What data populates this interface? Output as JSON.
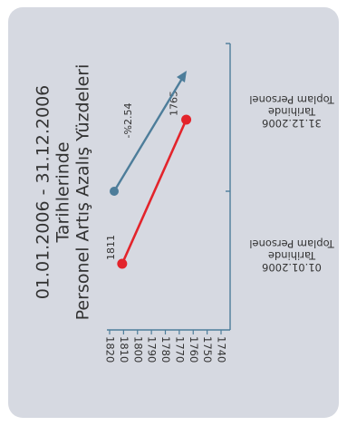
{
  "chart_data": {
    "type": "line",
    "title_lines": [
      "01.01.2006 - 31.12.2006",
      "Tarihlerinde",
      "Personel Artış Azalış Yüzdeleri"
    ],
    "categories": [
      {
        "lines": [
          "01.01.2006",
          "Tarihinde",
          "Toplam Personel"
        ]
      },
      {
        "lines": [
          "31.12.2006",
          "Tarihinde",
          "Toplam Personel"
        ]
      }
    ],
    "series": [
      {
        "values": [
          1811,
          1765
        ],
        "data_labels": [
          "1811",
          "1765"
        ],
        "color": "#e3242b"
      }
    ],
    "trend_arrow": {
      "label": "-%2.54",
      "color": "#4d7d9a"
    },
    "yticks": [
      1820,
      1810,
      1800,
      1790,
      1780,
      1770,
      1760,
      1750,
      1740
    ],
    "ylim": [
      1740,
      1820
    ],
    "grid": false,
    "legend": "none"
  }
}
